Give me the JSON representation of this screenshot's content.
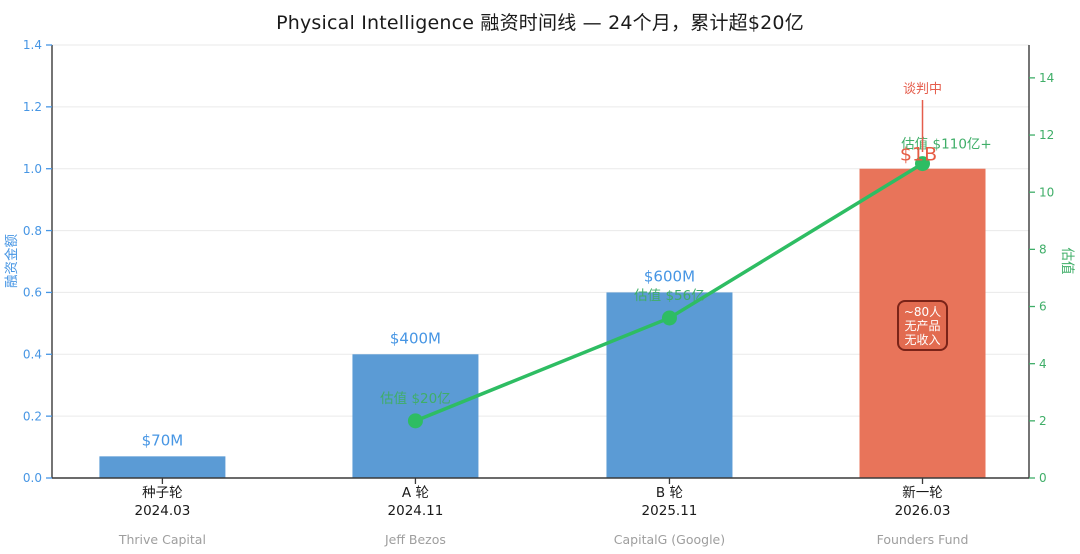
{
  "title": "Physical Intelligence 融资时间线 — 24个月，累计超$20亿",
  "colors": {
    "bar_blue": "#5B9BD5",
    "bar_orange": "#E8745A",
    "value_label_blue": "#4796E4",
    "value_label_orange_red": "#E65C44",
    "line_green": "#2EBD63",
    "text_green": "#3FAE68",
    "annotation_red": "#E55D4C",
    "info_box_fill": "#E26B50",
    "info_box_border": "#7A2318",
    "info_box_text": "#FFFFFF",
    "investor_gray": "#9E9E9E",
    "axis_dark": "#3A3A3A",
    "tick_label_dark": "#1A1A1A",
    "gridline": "#EAEAEA",
    "title_color": "#1A1A1A"
  },
  "chart_data": {
    "type": "bar+line dual-axis",
    "title": "Physical Intelligence 融资时间线 — 24个月，累计超$20亿",
    "categories": [
      {
        "round": "种子轮",
        "date": "2024.03",
        "investor": "Thrive Capital"
      },
      {
        "round": "A 轮",
        "date": "2024.11",
        "investor": "Jeff Bezos"
      },
      {
        "round": "B 轮",
        "date": "2025.11",
        "investor": "CapitalG (Google)"
      },
      {
        "round": "新一轮",
        "date": "2026.03",
        "investor": "Founders Fund"
      }
    ],
    "bar_series": {
      "name": "融资金额",
      "values": [
        0.07,
        0.4,
        0.6,
        1.0
      ],
      "labels": [
        "$70M",
        "$400M",
        "$600M",
        "$1B"
      ],
      "highlight_index": 3
    },
    "line_series": {
      "name": "估值",
      "values": [
        null,
        2,
        5.6,
        11
      ],
      "labels": [
        null,
        "估值 $20亿",
        "估值 $56亿",
        "估值 $110亿+"
      ]
    },
    "left_axis": {
      "label": "融资金额",
      "min": 0,
      "max": 1.4,
      "tick_labels": [
        "0.0",
        "0.2",
        "0.4",
        "0.6",
        "0.8",
        "1.0",
        "1.2",
        "1.4"
      ],
      "tick_values": [
        0,
        0.2,
        0.4,
        0.6,
        0.8,
        1.0,
        1.2,
        1.4
      ]
    },
    "right_axis": {
      "label": "估值",
      "min": 0,
      "max": 15.15,
      "tick_labels": [
        "0",
        "2",
        "4",
        "6",
        "8",
        "10",
        "12",
        "14"
      ],
      "tick_values": [
        0,
        2,
        4,
        6,
        8,
        10,
        12,
        14
      ]
    },
    "annotations": {
      "negotiating_label": "谈判中",
      "info_box_lines": [
        "~80人",
        "无产品",
        "无收入"
      ]
    },
    "grid": "horizontal",
    "legend": "none"
  }
}
